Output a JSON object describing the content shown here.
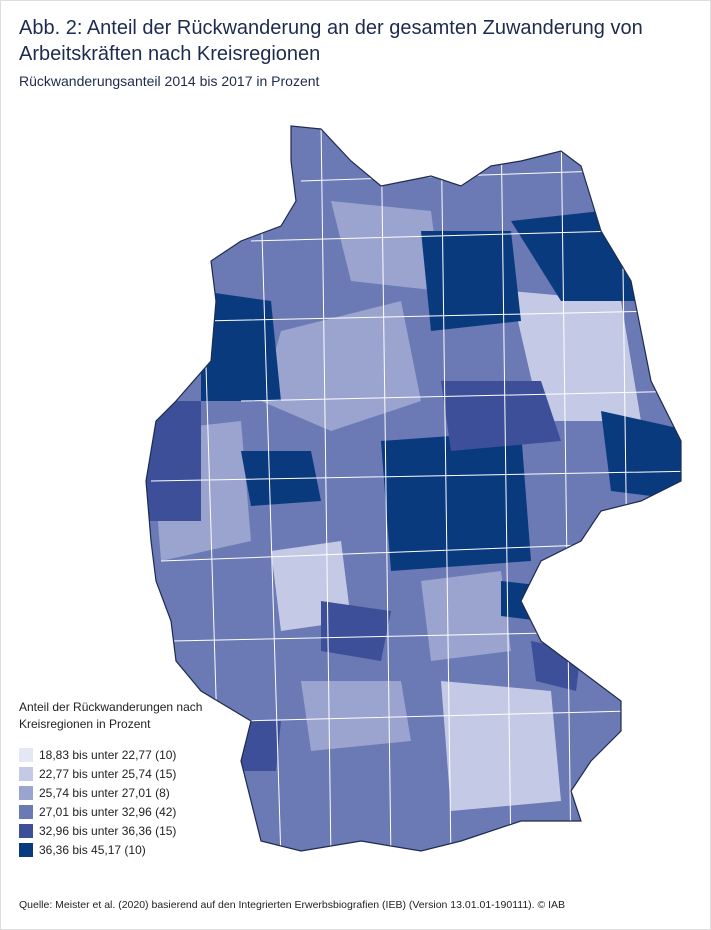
{
  "header": {
    "title": "Abb. 2: Anteil der Rückwanderung an der gesamten Zuwanderung von Arbeitskräften nach Kreisregionen",
    "subtitle": "Rückwanderungsanteil 2014 bis 2017 in Prozent"
  },
  "legend": {
    "title": "Anteil der Rückwanderungen nach Kreisregionen in Prozent",
    "items": [
      {
        "label": "18,83 bis unter 22,77 (10)",
        "color": "#e4e7f4"
      },
      {
        "label": "22,77 bis unter 25,74 (15)",
        "color": "#c4cae5"
      },
      {
        "label": "25,74 bis unter 27,01 (8)",
        "color": "#9aa4cf"
      },
      {
        "label": "27,01 bis unter 32,96 (42)",
        "color": "#6b79b5"
      },
      {
        "label": "32,96 bis unter 36,36 (15)",
        "color": "#3d4f99"
      },
      {
        "label": "36,36 bis 45,17 (10)",
        "color": "#0a3a7e"
      }
    ]
  },
  "source": "Quelle: Meister et al. (2020) basierend auf den Integrierten Erwerbsbiografien (IEB) (Version 13.01.01-190111). © IAB"
}
